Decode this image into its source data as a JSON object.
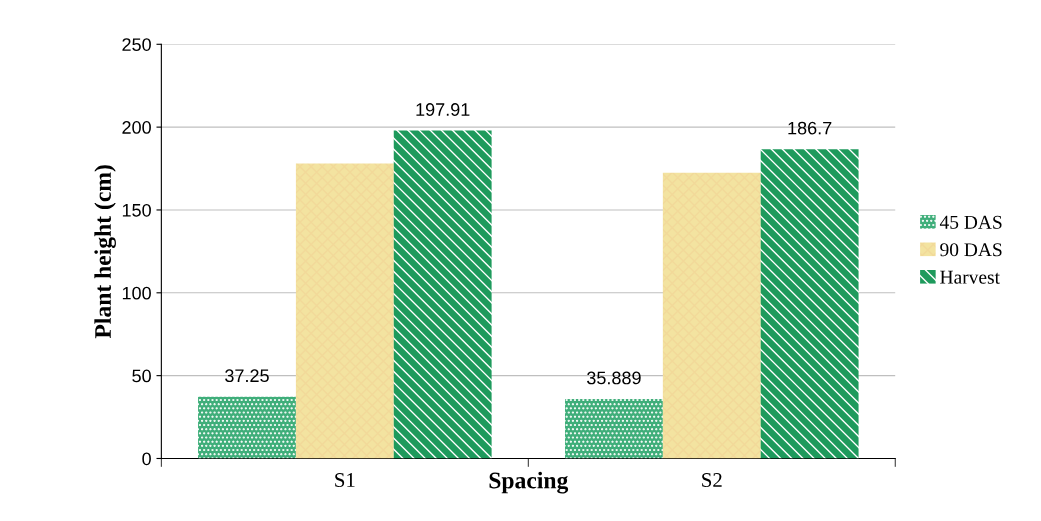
{
  "chart_data": {
    "type": "bar",
    "xlabel": "Spacing",
    "ylabel": "Plant height (cm)",
    "categories": [
      "S1",
      "S2"
    ],
    "series": [
      {
        "name": "45 DAS",
        "color": "#3fae7a",
        "values": [
          37.25,
          35.889
        ],
        "value_labels": [
          "37.25",
          "35.889"
        ]
      },
      {
        "name": "90 DAS",
        "color": "#f3e3a0",
        "values": [
          178,
          172.5
        ],
        "value_labels": [
          null,
          null
        ]
      },
      {
        "name": "Harvest",
        "color": "#1e9a5c",
        "values": [
          197.91,
          186.7
        ],
        "value_labels": [
          "197.91",
          "186.7"
        ]
      }
    ],
    "ylim": [
      0,
      250
    ],
    "yticks": [
      0,
      50,
      100,
      150,
      200,
      250
    ],
    "grid": "y",
    "legend": "right"
  }
}
